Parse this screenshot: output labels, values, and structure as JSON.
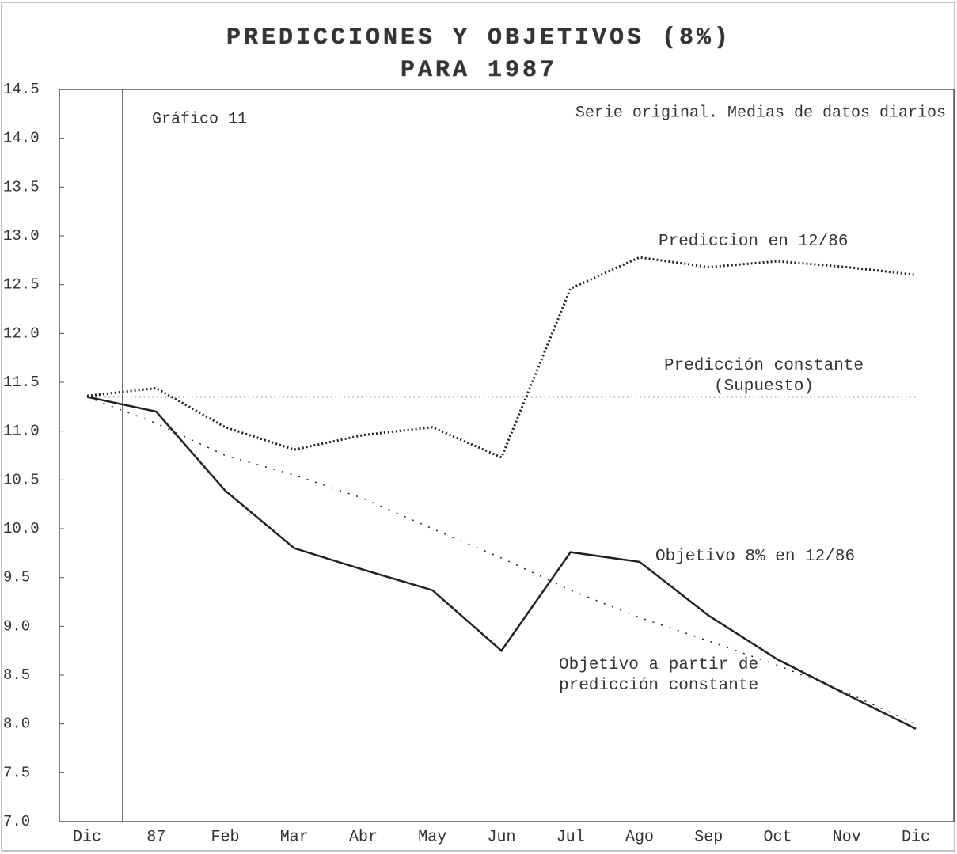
{
  "chart_data": {
    "type": "line",
    "title": "PREDICCIONES Y OBJETIVOS (8%)",
    "subtitle": "PARA 1987",
    "annotations": [
      "Gráfico 11",
      "Serie original. Medias de datos diarios"
    ],
    "categories": [
      "Dic",
      "87",
      "Feb",
      "Mar",
      "Abr",
      "May",
      "Jun",
      "Jul",
      "Ago",
      "Sep",
      "Oct",
      "Nov",
      "Dic"
    ],
    "series": [
      {
        "name": "Prediccion en 12/86",
        "color": "#222222",
        "values": [
          11.36,
          11.44,
          11.04,
          10.81,
          10.96,
          11.04,
          10.73,
          12.46,
          12.78,
          12.68,
          12.74,
          12.68,
          12.6
        ]
      },
      {
        "name": "Predicción constante (Supuesto)",
        "color": "#222222",
        "values": [
          11.35,
          11.35,
          11.35,
          11.35,
          11.35,
          11.35,
          11.35,
          11.35,
          11.35,
          11.35,
          11.35,
          11.35,
          11.35
        ]
      },
      {
        "name": "Objetivo 8% en 12/86",
        "color": "#222222",
        "values": [
          11.35,
          11.2,
          10.39,
          9.8,
          9.58,
          9.37,
          8.75,
          9.76,
          9.66,
          9.11,
          8.66,
          8.3,
          7.95
        ]
      },
      {
        "name": "Objetivo a partir de predicción constante",
        "color": "#222222",
        "values": [
          11.35,
          11.08,
          10.75,
          10.55,
          10.31,
          10.0,
          9.7,
          9.37,
          9.09,
          8.85,
          8.6,
          8.32,
          8.0
        ]
      }
    ],
    "ylim": [
      7,
      14.5
    ],
    "yticks": [
      {
        "value": 7,
        "label": "7.0"
      },
      7.5,
      {
        "value": 8,
        "label": "8.0"
      },
      8.5,
      {
        "value": 9,
        "label": "9.0"
      },
      9.5,
      {
        "value": 10,
        "label": "10.0"
      },
      10.5,
      {
        "value": 11,
        "label": "11.0"
      },
      11.5,
      {
        "value": 12,
        "label": "12.0"
      },
      12.5,
      {
        "value": 13,
        "label": "13.0"
      },
      13.5,
      {
        "value": 14,
        "label": "14.0"
      },
      14.5
    ]
  }
}
